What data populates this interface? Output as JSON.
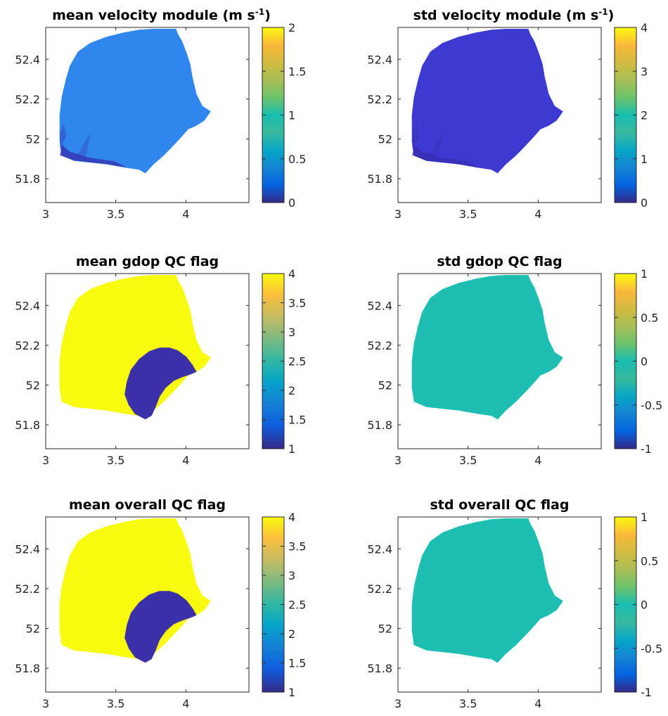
{
  "figure": {
    "colormap": "parula",
    "panel_background": "#ffffff",
    "axis_color": "#262626"
  },
  "chart_data": [
    {
      "type": "heatmap",
      "title_parts": [
        "mean velocity module (m s",
        "-1",
        ")"
      ],
      "xticks": [
        "3",
        "3.5",
        "4"
      ],
      "yticks": [
        "52.4",
        "52.2",
        "52",
        "51.8"
      ],
      "xlim": [
        3.0,
        4.45
      ],
      "ylim": [
        51.68,
        52.56
      ],
      "colorbar_ticks": [
        "2",
        "1.5",
        "1",
        "0.5",
        "0"
      ],
      "clim": [
        0,
        2
      ],
      "fill_value": 0.8,
      "fill_color": "#2f86ec",
      "hole": null,
      "has_low_edge_streaks": true
    },
    {
      "type": "heatmap",
      "title_parts": [
        "std velocity module (m s",
        "-1",
        ")"
      ],
      "xticks": [
        "3",
        "3.5",
        "4"
      ],
      "yticks": [
        "52.4",
        "52.2",
        "52",
        "51.8"
      ],
      "xlim": [
        3.0,
        4.45
      ],
      "ylim": [
        51.68,
        52.56
      ],
      "colorbar_ticks": [
        "4",
        "3",
        "2",
        "1",
        "0"
      ],
      "clim": [
        0,
        4
      ],
      "fill_value": 0.5,
      "fill_color": "#3c3ad0",
      "hole": null,
      "has_low_edge_streaks": true
    },
    {
      "type": "heatmap",
      "title_parts": [
        "mean gdop QC flag"
      ],
      "xticks": [
        "3",
        "3.5",
        "4"
      ],
      "yticks": [
        "52.4",
        "52.2",
        "52",
        "51.8"
      ],
      "xlim": [
        3.0,
        4.45
      ],
      "ylim": [
        51.68,
        52.56
      ],
      "colorbar_ticks": [
        "4",
        "3.5",
        "3",
        "2.5",
        "2",
        "1.5",
        "1"
      ],
      "clim": [
        1,
        4
      ],
      "fill_value": 4,
      "fill_color": "#f9fb0e",
      "hole": {
        "value": 1,
        "color": "#3b30a8"
      },
      "has_low_edge_streaks": false
    },
    {
      "type": "heatmap",
      "title_parts": [
        "std gdop QC flag"
      ],
      "xticks": [
        "3",
        "3.5",
        "4"
      ],
      "yticks": [
        "52.4",
        "52.2",
        "52",
        "51.8"
      ],
      "xlim": [
        3.0,
        4.45
      ],
      "ylim": [
        51.68,
        52.56
      ],
      "colorbar_ticks": [
        "1",
        "0.5",
        "0",
        "-0.5",
        "-1"
      ],
      "clim": [
        -1,
        1
      ],
      "fill_value": 0,
      "fill_color": "#1cbfb2",
      "hole": null,
      "has_low_edge_streaks": false
    },
    {
      "type": "heatmap",
      "title_parts": [
        "mean overall QC flag"
      ],
      "xticks": [
        "3",
        "3.5",
        "4"
      ],
      "yticks": [
        "52.4",
        "52.2",
        "52",
        "51.8"
      ],
      "xlim": [
        3.0,
        4.45
      ],
      "ylim": [
        51.68,
        52.56
      ],
      "colorbar_ticks": [
        "4",
        "3.5",
        "3",
        "2.5",
        "2",
        "1.5",
        "1"
      ],
      "clim": [
        1,
        4
      ],
      "fill_value": 4,
      "fill_color": "#f9fb0e",
      "hole": {
        "value": 1,
        "color": "#3b30a8"
      },
      "has_low_edge_streaks": false
    },
    {
      "type": "heatmap",
      "title_parts": [
        "std overall QC flag"
      ],
      "xticks": [
        "3",
        "3.5",
        "4"
      ],
      "yticks": [
        "52.4",
        "52.2",
        "52",
        "51.8"
      ],
      "xlim": [
        3.0,
        4.45
      ],
      "ylim": [
        51.68,
        52.56
      ],
      "colorbar_ticks": [
        "1",
        "0.5",
        "0",
        "-0.5",
        "-1"
      ],
      "clim": [
        -1,
        1
      ],
      "fill_value": 0,
      "fill_color": "#1cbfb2",
      "hole": null,
      "has_low_edge_streaks": false
    }
  ]
}
